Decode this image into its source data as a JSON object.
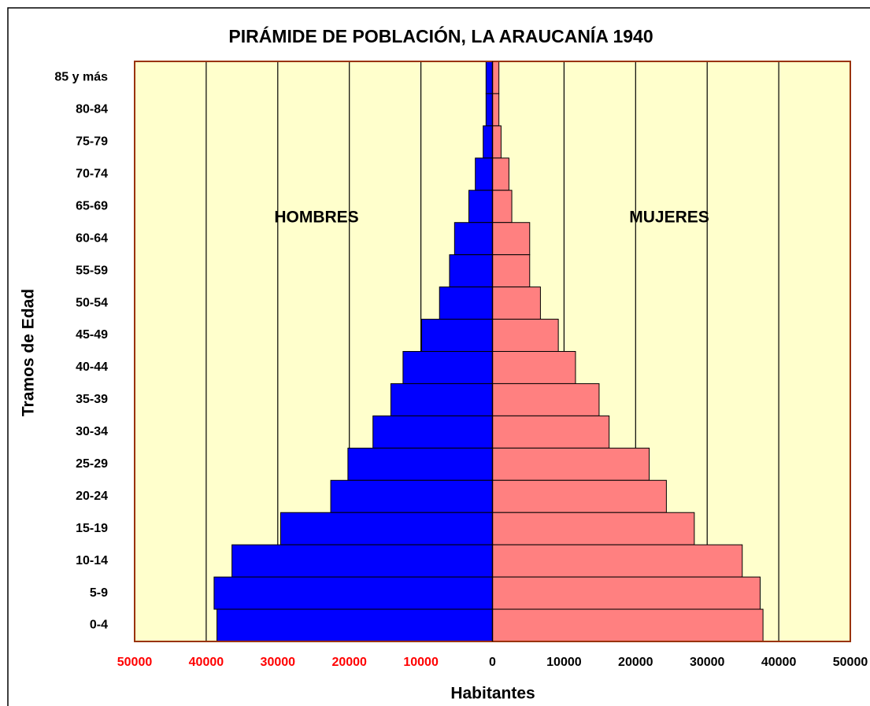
{
  "chart_data": {
    "type": "pyramid",
    "title": "PIRÁMIDE DE POBLACIÓN, LA ARAUCANÍA 1940",
    "xlabel": "Habitantes",
    "ylabel": "Tramos de Edad",
    "annotations": [
      "HOMBRES",
      "MUJERES"
    ],
    "categories": [
      "85 y más",
      "80-84",
      "75-79",
      "70-74",
      "65-69",
      "60-64",
      "55-59",
      "50-54",
      "45-49",
      "40-44",
      "35-39",
      "30-34",
      "25-29",
      "20-24",
      "15-19",
      "10-14",
      "5-9",
      "0-4"
    ],
    "series": [
      {
        "color": "#0000ff",
        "values": [
          -900,
          -900,
          -1300,
          -2400,
          -3300,
          -5300,
          -6000,
          -7400,
          -9900,
          -12500,
          -14200,
          -16700,
          -20200,
          -22600,
          -29600,
          -36400,
          -38900,
          -38500
        ]
      },
      {
        "color": "#ff8080",
        "values": [
          900,
          900,
          1200,
          2300,
          2700,
          5200,
          5200,
          6700,
          9200,
          11600,
          14900,
          16300,
          21900,
          24300,
          28200,
          34900,
          37400,
          37800
        ]
      }
    ],
    "xlim": [
      -50000,
      50000
    ],
    "xticks": [
      {
        "value": -50000,
        "label": "50000"
      },
      {
        "value": -40000,
        "label": "40000"
      },
      {
        "value": -30000,
        "label": "30000"
      },
      {
        "value": -20000,
        "label": "20000"
      },
      {
        "value": -10000,
        "label": "10000"
      },
      0,
      10000,
      20000,
      30000,
      40000,
      50000
    ],
    "negative_tick_color": "#ff0000",
    "plot_background": "#ffffcc",
    "grid": true
  }
}
